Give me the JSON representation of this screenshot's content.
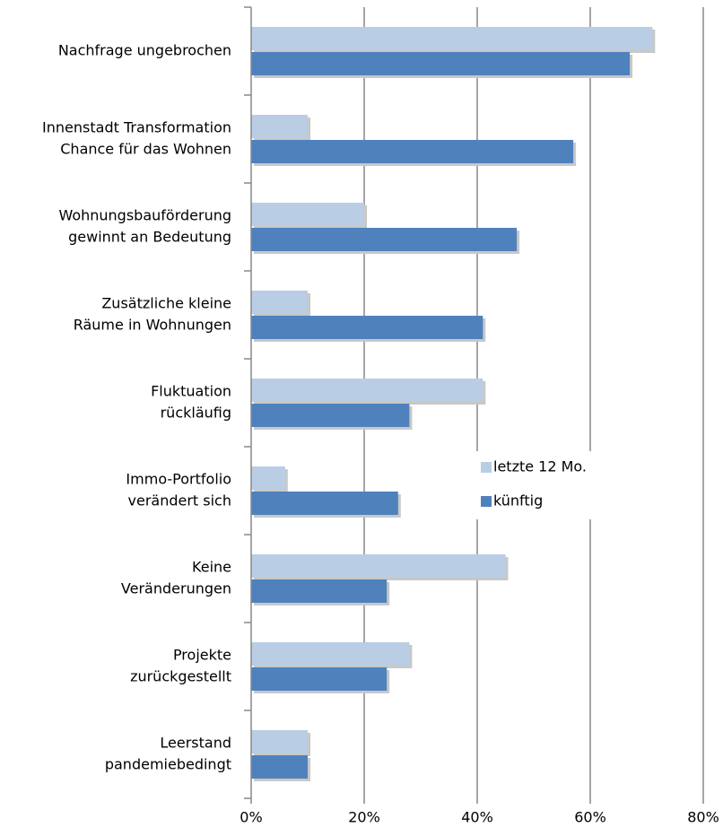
{
  "chart_data": {
    "type": "hbar",
    "categories": [
      [
        "Nachfrage ungebrochen"
      ],
      [
        "Innenstadt Transformation",
        "Chance für das Wohnen"
      ],
      [
        "Wohnungsbauförderung",
        "gewinnt an Bedeutung"
      ],
      [
        "Zusätzliche kleine",
        "Räume in Wohnungen"
      ],
      [
        "Fluktuation",
        "rückläufig"
      ],
      [
        "Immo-Portfolio",
        "verändert sich"
      ],
      [
        "Keine",
        "Veränderungen"
      ],
      [
        "Projekte",
        "zurückgestellt"
      ],
      [
        "Leerstand",
        "pandemiebedingt"
      ]
    ],
    "series": [
      {
        "name": "letzte 12 Mo.",
        "color": "#b9cde5",
        "values": [
          71,
          10,
          20,
          10,
          41,
          6,
          45,
          28,
          10
        ]
      },
      {
        "name": "künftig",
        "color": "#4f81bd",
        "values": [
          67,
          57,
          47,
          41,
          28,
          26,
          24,
          24,
          10
        ]
      }
    ],
    "xlim": [
      0,
      80
    ],
    "xticks": [
      {
        "value": 0,
        "label": "0%"
      },
      {
        "value": 20,
        "label": "20%"
      },
      {
        "value": 40,
        "label": "40%"
      },
      {
        "value": 60,
        "label": "60%"
      },
      {
        "value": 80,
        "label": "80%"
      }
    ],
    "grid": true
  }
}
